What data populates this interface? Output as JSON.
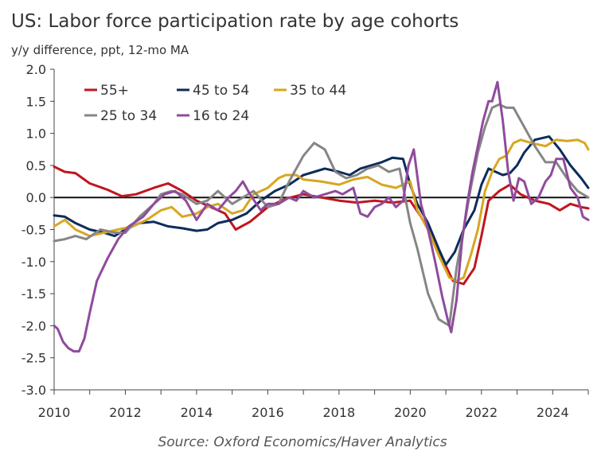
{
  "chart_data": {
    "type": "line",
    "title": "US: Labor force participation rate by age cohorts",
    "subtitle": "y/y difference, ppt, 12-mo MA",
    "source": "Source: Oxford Economics/Haver Analytics",
    "xlim": [
      2010,
      2025
    ],
    "ylim": [
      -3.0,
      2.0
    ],
    "x_ticks": [
      "2010",
      "2012",
      "2014",
      "2016",
      "2018",
      "2020",
      "2022",
      "2024"
    ],
    "y_ticks": [
      "2.0",
      "1.5",
      "1.0",
      "0.5",
      "0.0",
      "-0.5",
      "-1.0",
      "-1.5",
      "-2.0",
      "-2.5",
      "-3.0"
    ],
    "grid": false,
    "legend": "top-left",
    "series": [
      {
        "name": "55+",
        "color": "#c0161e",
        "x": [
          2010.0,
          2010.3,
          2010.6,
          2011.0,
          2011.5,
          2011.9,
          2012.3,
          2012.8,
          2013.2,
          2013.6,
          2014.0,
          2014.4,
          2014.8,
          2015.1,
          2015.5,
          2016.0,
          2016.5,
          2017.0,
          2017.5,
          2018.0,
          2018.5,
          2019.0,
          2019.5,
          2020.0,
          2020.3,
          2020.6,
          2020.9,
          2021.2,
          2021.5,
          2021.8,
          2022.0,
          2022.2,
          2022.5,
          2022.8,
          2023.1,
          2023.5,
          2023.9,
          2024.2,
          2024.5,
          2024.8,
          2025.0
        ],
        "values": [
          0.48,
          0.4,
          0.38,
          0.22,
          0.12,
          0.02,
          0.05,
          0.15,
          0.22,
          0.1,
          -0.05,
          -0.15,
          -0.25,
          -0.5,
          -0.38,
          -0.15,
          -0.02,
          0.05,
          0.0,
          -0.05,
          -0.08,
          -0.05,
          -0.08,
          -0.05,
          -0.3,
          -0.6,
          -0.95,
          -1.3,
          -1.35,
          -1.1,
          -0.6,
          -0.05,
          0.1,
          0.2,
          0.05,
          -0.05,
          -0.1,
          -0.2,
          -0.1,
          -0.15,
          -0.17
        ]
      },
      {
        "name": "45 to 54",
        "color": "#0c2c5a",
        "x": [
          2010.0,
          2010.3,
          2010.6,
          2011.0,
          2011.4,
          2011.7,
          2012.0,
          2012.4,
          2012.8,
          2013.2,
          2013.6,
          2014.0,
          2014.3,
          2014.6,
          2015.0,
          2015.4,
          2015.8,
          2016.2,
          2016.6,
          2017.0,
          2017.3,
          2017.6,
          2018.0,
          2018.3,
          2018.6,
          2018.9,
          2019.2,
          2019.5,
          2019.8,
          2020.0,
          2020.2,
          2020.5,
          2020.8,
          2021.0,
          2021.25,
          2021.5,
          2021.8,
          2022.0,
          2022.2,
          2022.4,
          2022.6,
          2022.8,
          2023.0,
          2023.2,
          2023.5,
          2023.9,
          2024.2,
          2024.5,
          2024.8,
          2025.0
        ],
        "values": [
          -0.28,
          -0.3,
          -0.4,
          -0.5,
          -0.55,
          -0.6,
          -0.5,
          -0.4,
          -0.38,
          -0.45,
          -0.48,
          -0.52,
          -0.5,
          -0.4,
          -0.35,
          -0.25,
          -0.05,
          0.1,
          0.2,
          0.35,
          0.4,
          0.45,
          0.4,
          0.35,
          0.45,
          0.5,
          0.55,
          0.62,
          0.6,
          0.2,
          -0.1,
          -0.4,
          -0.8,
          -1.05,
          -0.85,
          -0.5,
          -0.2,
          0.2,
          0.45,
          0.4,
          0.35,
          0.38,
          0.5,
          0.7,
          0.9,
          0.95,
          0.75,
          0.5,
          0.3,
          0.15
        ]
      },
      {
        "name": "35 to 44",
        "color": "#d8a620",
        "x": [
          2010.0,
          2010.3,
          2010.6,
          2011.0,
          2011.4,
          2011.8,
          2012.2,
          2012.6,
          2013.0,
          2013.3,
          2013.6,
          2014.0,
          2014.3,
          2014.6,
          2015.0,
          2015.3,
          2015.6,
          2016.0,
          2016.3,
          2016.5,
          2016.8,
          2017.0,
          2017.5,
          2018.0,
          2018.4,
          2018.8,
          2019.2,
          2019.6,
          2020.0,
          2020.2,
          2020.5,
          2020.8,
          2021.1,
          2021.3,
          2021.5,
          2021.7,
          2021.9,
          2022.1,
          2022.3,
          2022.5,
          2022.7,
          2022.9,
          2023.1,
          2023.4,
          2023.8,
          2024.1,
          2024.4,
          2024.7,
          2024.9,
          2025.0
        ],
        "values": [
          -0.45,
          -0.35,
          -0.5,
          -0.6,
          -0.55,
          -0.5,
          -0.45,
          -0.35,
          -0.2,
          -0.15,
          -0.3,
          -0.25,
          -0.15,
          -0.1,
          -0.25,
          -0.2,
          0.05,
          0.15,
          0.3,
          0.35,
          0.35,
          0.28,
          0.25,
          0.2,
          0.28,
          0.32,
          0.2,
          0.15,
          0.25,
          -0.2,
          -0.5,
          -0.9,
          -1.25,
          -1.3,
          -1.25,
          -0.9,
          -0.5,
          0.1,
          0.4,
          0.6,
          0.65,
          0.85,
          0.9,
          0.85,
          0.8,
          0.9,
          0.88,
          0.9,
          0.85,
          0.75
        ]
      },
      {
        "name": "25 to 34",
        "color": "#868686",
        "x": [
          2010.0,
          2010.3,
          2010.6,
          2010.9,
          2011.3,
          2011.7,
          2012.0,
          2012.4,
          2012.8,
          2013.0,
          2013.3,
          2013.6,
          2014.0,
          2014.3,
          2014.6,
          2015.0,
          2015.3,
          2015.6,
          2016.0,
          2016.3,
          2016.6,
          2017.0,
          2017.3,
          2017.6,
          2017.9,
          2018.2,
          2018.5,
          2018.8,
          2019.1,
          2019.4,
          2019.7,
          2020.0,
          2020.2,
          2020.5,
          2020.8,
          2021.1,
          2021.3,
          2021.5,
          2021.7,
          2021.9,
          2022.1,
          2022.3,
          2022.5,
          2022.7,
          2022.9,
          2023.2,
          2023.5,
          2023.8,
          2024.1,
          2024.4,
          2024.7,
          2025.0
        ],
        "values": [
          -0.68,
          -0.65,
          -0.6,
          -0.65,
          -0.5,
          -0.55,
          -0.55,
          -0.3,
          -0.1,
          0.05,
          0.1,
          0.05,
          -0.1,
          -0.05,
          0.1,
          -0.1,
          0.0,
          0.1,
          -0.15,
          -0.1,
          0.25,
          0.65,
          0.85,
          0.75,
          0.4,
          0.3,
          0.35,
          0.45,
          0.5,
          0.4,
          0.45,
          -0.4,
          -0.8,
          -1.5,
          -1.9,
          -2.0,
          -1.1,
          -0.5,
          0.15,
          0.7,
          1.1,
          1.4,
          1.45,
          1.4,
          1.4,
          1.1,
          0.8,
          0.55,
          0.55,
          0.3,
          0.1,
          0.0
        ]
      },
      {
        "name": "16 to 24",
        "color": "#8f4b9c",
        "x": [
          2010.0,
          2010.1,
          2010.25,
          2010.4,
          2010.55,
          2010.7,
          2010.85,
          2011.0,
          2011.2,
          2011.5,
          2011.8,
          2012.1,
          2012.5,
          2012.8,
          2013.1,
          2013.4,
          2013.7,
          2014.0,
          2014.3,
          2014.6,
          2014.9,
          2015.1,
          2015.3,
          2015.5,
          2015.8,
          2016.0,
          2016.3,
          2016.6,
          2016.8,
          2017.0,
          2017.3,
          2017.6,
          2017.9,
          2018.1,
          2018.4,
          2018.6,
          2018.8,
          2019.0,
          2019.2,
          2019.4,
          2019.6,
          2019.8,
          2019.95,
          2020.1,
          2020.3,
          2020.5,
          2020.7,
          2020.9,
          2021.05,
          2021.15,
          2021.3,
          2021.45,
          2021.6,
          2021.75,
          2021.9,
          2022.05,
          2022.2,
          2022.3,
          2022.45,
          2022.6,
          2022.75,
          2022.9,
          2023.05,
          2023.2,
          2023.4,
          2023.6,
          2023.8,
          2023.95,
          2024.1,
          2024.3,
          2024.5,
          2024.7,
          2024.85,
          2025.0
        ],
        "values": [
          -2.0,
          -2.05,
          -2.25,
          -2.35,
          -2.4,
          -2.4,
          -2.2,
          -1.8,
          -1.3,
          -0.95,
          -0.65,
          -0.45,
          -0.3,
          -0.1,
          0.05,
          0.1,
          -0.05,
          -0.35,
          -0.1,
          -0.2,
          0.0,
          0.1,
          0.25,
          0.05,
          -0.2,
          -0.1,
          -0.1,
          0.0,
          -0.05,
          0.1,
          0.0,
          0.05,
          0.1,
          0.05,
          0.15,
          -0.25,
          -0.3,
          -0.15,
          -0.1,
          0.0,
          -0.15,
          -0.05,
          0.5,
          0.75,
          -0.1,
          -0.5,
          -1.0,
          -1.55,
          -1.9,
          -2.1,
          -1.6,
          -0.7,
          -0.1,
          0.4,
          0.8,
          1.2,
          1.5,
          1.5,
          1.8,
          1.2,
          0.4,
          -0.05,
          0.3,
          0.25,
          -0.1,
          0.0,
          0.25,
          0.35,
          0.6,
          0.6,
          0.15,
          0.0,
          -0.3,
          -0.35
        ]
      }
    ]
  }
}
